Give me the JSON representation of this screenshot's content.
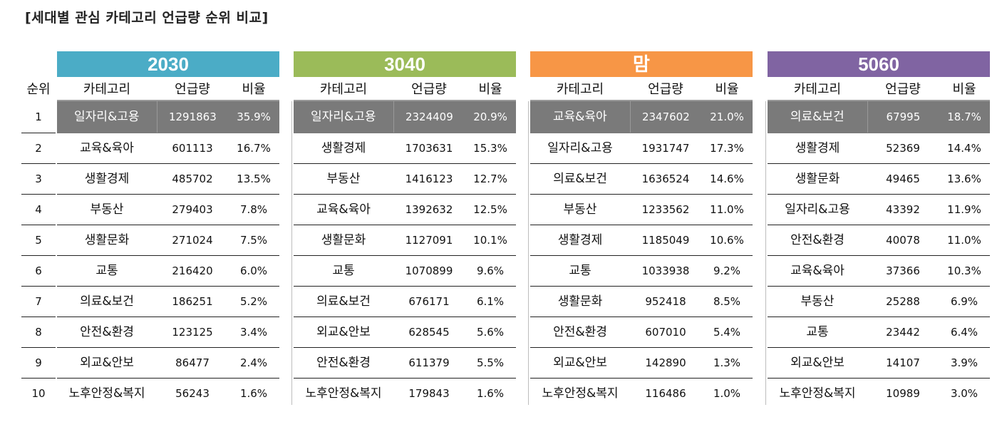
{
  "title": "[세대별 관심 카테고리 언급량 순위 비교]",
  "rank_header": "순위",
  "ranks": [
    "1",
    "2",
    "3",
    "4",
    "5",
    "6",
    "7",
    "8",
    "9",
    "10"
  ],
  "columns": {
    "category": "카테고리",
    "count": "언급량",
    "ratio": "비율"
  },
  "groups": [
    {
      "label": "2030",
      "color": "#4bacc6",
      "rows": [
        {
          "category": "일자리&고용",
          "count": "1291863",
          "ratio": "35.9%"
        },
        {
          "category": "교육&육아",
          "count": "601113",
          "ratio": "16.7%"
        },
        {
          "category": "생활경제",
          "count": "485702",
          "ratio": "13.5%"
        },
        {
          "category": "부동산",
          "count": "279403",
          "ratio": "7.8%"
        },
        {
          "category": "생활문화",
          "count": "271024",
          "ratio": "7.5%"
        },
        {
          "category": "교통",
          "count": "216420",
          "ratio": "6.0%"
        },
        {
          "category": "의료&보건",
          "count": "186251",
          "ratio": "5.2%"
        },
        {
          "category": "안전&환경",
          "count": "123125",
          "ratio": "3.4%"
        },
        {
          "category": "외교&안보",
          "count": "86477",
          "ratio": "2.4%"
        },
        {
          "category": "노후안정&복지",
          "count": "56243",
          "ratio": "1.6%"
        }
      ]
    },
    {
      "label": "3040",
      "color": "#9bbb59",
      "rows": [
        {
          "category": "일자리&고용",
          "count": "2324409",
          "ratio": "20.9%"
        },
        {
          "category": "생활경제",
          "count": "1703631",
          "ratio": "15.3%"
        },
        {
          "category": "부동산",
          "count": "1416123",
          "ratio": "12.7%"
        },
        {
          "category": "교육&육아",
          "count": "1392632",
          "ratio": "12.5%"
        },
        {
          "category": "생활문화",
          "count": "1127091",
          "ratio": "10.1%"
        },
        {
          "category": "교통",
          "count": "1070899",
          "ratio": "9.6%"
        },
        {
          "category": "의료&보건",
          "count": "676171",
          "ratio": "6.1%"
        },
        {
          "category": "외교&안보",
          "count": "628545",
          "ratio": "5.6%"
        },
        {
          "category": "안전&환경",
          "count": "611379",
          "ratio": "5.5%"
        },
        {
          "category": "노후안정&복지",
          "count": "179843",
          "ratio": "1.6%"
        }
      ]
    },
    {
      "label": "맘",
      "color": "#f79646",
      "rows": [
        {
          "category": "교육&육아",
          "count": "2347602",
          "ratio": "21.0%"
        },
        {
          "category": "일자리&고용",
          "count": "1931747",
          "ratio": "17.3%"
        },
        {
          "category": "의료&보건",
          "count": "1636524",
          "ratio": "14.6%"
        },
        {
          "category": "부동산",
          "count": "1233562",
          "ratio": "11.0%"
        },
        {
          "category": "생활경제",
          "count": "1185049",
          "ratio": "10.6%"
        },
        {
          "category": "교통",
          "count": "1033938",
          "ratio": "9.2%"
        },
        {
          "category": "생활문화",
          "count": "952418",
          "ratio": "8.5%"
        },
        {
          "category": "안전&환경",
          "count": "607010",
          "ratio": "5.4%"
        },
        {
          "category": "외교&안보",
          "count": "142890",
          "ratio": "1.3%"
        },
        {
          "category": "노후안정&복지",
          "count": "116486",
          "ratio": "1.0%"
        }
      ]
    },
    {
      "label": "5060",
      "color": "#8064a2",
      "rows": [
        {
          "category": "의료&보건",
          "count": "67995",
          "ratio": "18.7%"
        },
        {
          "category": "생활경제",
          "count": "52369",
          "ratio": "14.4%"
        },
        {
          "category": "생활문화",
          "count": "49465",
          "ratio": "13.6%"
        },
        {
          "category": "일자리&고용",
          "count": "43392",
          "ratio": "11.9%"
        },
        {
          "category": "안전&환경",
          "count": "40078",
          "ratio": "11.0%"
        },
        {
          "category": "교육&육아",
          "count": "37366",
          "ratio": "10.3%"
        },
        {
          "category": "부동산",
          "count": "25288",
          "ratio": "6.9%"
        },
        {
          "category": "교통",
          "count": "23442",
          "ratio": "6.4%"
        },
        {
          "category": "외교&안보",
          "count": "14107",
          "ratio": "3.9%"
        },
        {
          "category": "노후안정&복지",
          "count": "10989",
          "ratio": "3.0%"
        }
      ]
    }
  ]
}
